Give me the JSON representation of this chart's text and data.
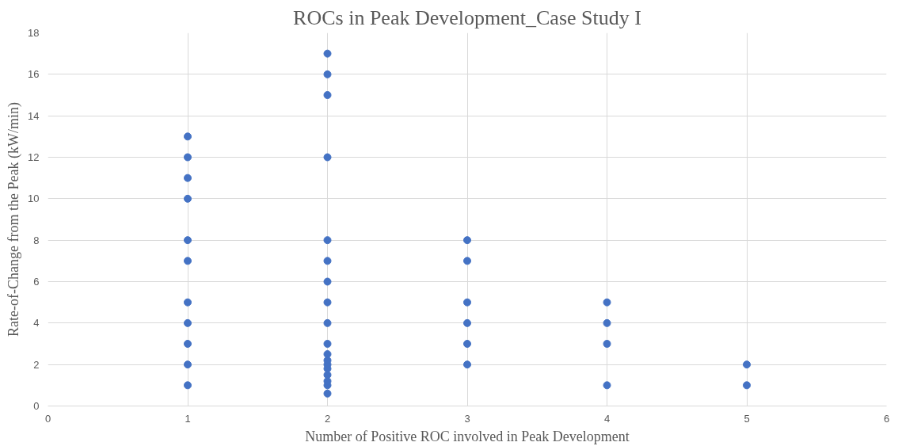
{
  "chart_data": {
    "type": "scatter",
    "title": "ROCs in Peak Development_Case Study I",
    "xlabel": "Number of Positive ROC involved in Peak Development",
    "ylabel": "Rate-of-Change from the Peak (kW/min)",
    "x": [
      1,
      1,
      1,
      1,
      1,
      1,
      1,
      1,
      1,
      1,
      1,
      2,
      2,
      2,
      2,
      2,
      2,
      2,
      2,
      2,
      2,
      2,
      2,
      2,
      2,
      2,
      2,
      2,
      2,
      3,
      3,
      3,
      3,
      3,
      3,
      4,
      4,
      4,
      4,
      5,
      5
    ],
    "values": [
      1,
      2,
      3,
      4,
      5,
      7,
      8,
      10,
      11,
      12,
      13,
      0.6,
      1.0,
      1.2,
      1.5,
      1.8,
      2.0,
      2.2,
      2.5,
      3,
      4,
      5,
      6,
      7,
      8,
      12,
      15,
      16,
      17,
      2,
      3,
      4,
      5,
      7,
      8,
      1,
      3,
      4,
      5,
      1,
      2
    ],
    "color": "#4472c4",
    "marker": "circle",
    "xlim": [
      0,
      6
    ],
    "xticks": [
      0,
      1,
      2,
      3,
      4,
      5,
      6
    ],
    "ylim": [
      0,
      18
    ],
    "yticks": [
      0,
      2,
      4,
      6,
      8,
      10,
      12,
      14,
      16,
      18
    ],
    "grid": true
  }
}
